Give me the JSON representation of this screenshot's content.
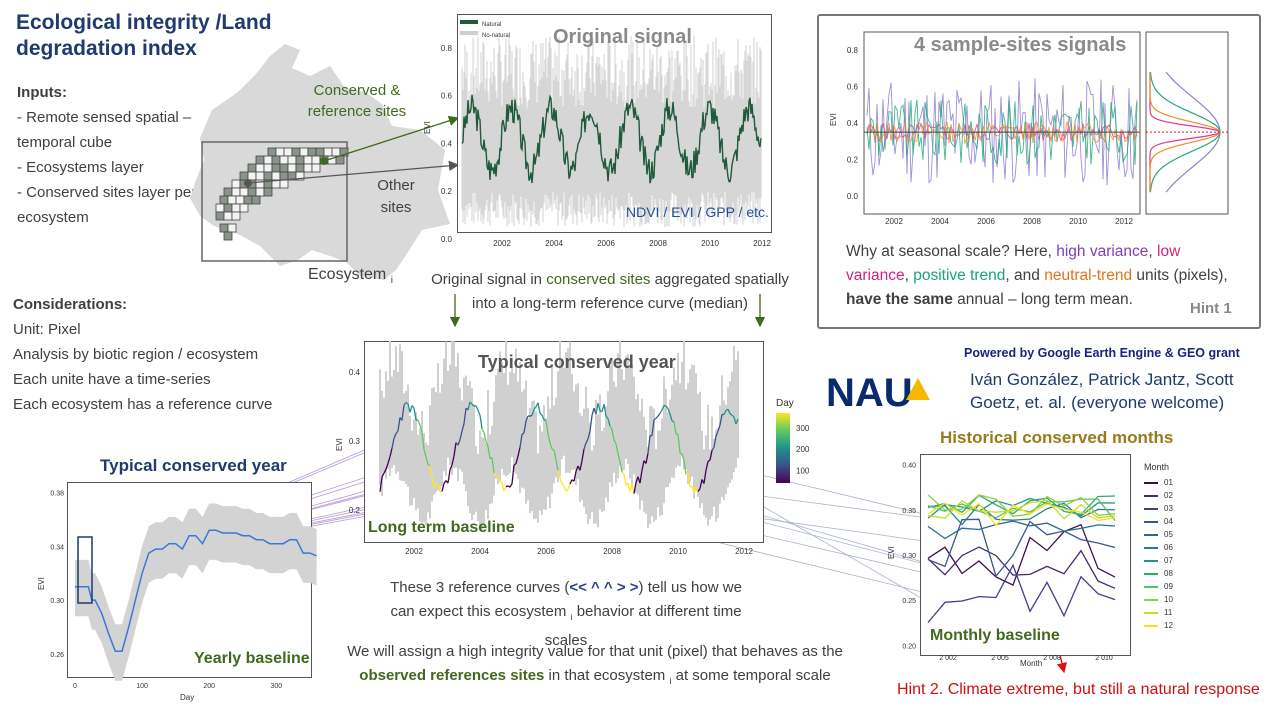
{
  "header": {
    "title": "Ecological integrity /Land degradation index"
  },
  "inputs": {
    "heading": "Inputs:",
    "items": [
      "- Remote sensed spatial – temporal cube",
      "- Ecosystems layer",
      "- Conserved sites layer per ecosystem"
    ]
  },
  "considerations": {
    "heading": "Considerations:",
    "items": [
      "Unit: Pixel",
      "Analysis by biotic region / ecosystem",
      "Each unite have a time-series",
      "Each ecosystem has a reference curve"
    ]
  },
  "map": {
    "conserved_label": "Conserved & reference sites",
    "other_label": "Other sites",
    "ecosystem_label": "Ecosystem",
    "ecosystem_sub": "i"
  },
  "original_signal": {
    "title": "Original signal",
    "legend": [
      "Natural",
      "No-natural"
    ],
    "products": "NDVI / EVI / GPP / etc.",
    "colors": {
      "natural": "#1f5a3a",
      "nonnatural": "#cfcfcf"
    }
  },
  "hint1": {
    "title": "4 sample-sites signals",
    "text_pre": "Why at seasonal scale? Here, ",
    "high_variance": "high variance",
    "sep1": ", ",
    "low_variance": "low variance",
    "sep2": ", ",
    "positive_trend": "positive trend",
    "sep3": ", and ",
    "neutral_trend": "neutral-trend",
    "text_mid": " units (pixels), ",
    "same": "have the same",
    "text_post": " annual – long term mean.",
    "hint_label": "Hint 1"
  },
  "aggregation_caption": {
    "pre": "Original signal in ",
    "highlight": "conserved sites",
    "post": " aggregated spatially into a long-term reference curve (median)"
  },
  "long_term": {
    "title": "Typical conserved year",
    "baseline_label": "Long term baseline",
    "colorbar_title": "Day"
  },
  "credits": {
    "powered": "Powered by Google Earth Engine & GEO grant",
    "logo": "NAU",
    "authors": "Iván González, Patrick Jantz, Scott Goetz, et. al. (everyone welcome)"
  },
  "yearly": {
    "title": "Typical conserved year",
    "baseline_label": "Yearly baseline"
  },
  "monthly": {
    "title": "Historical conserved months",
    "baseline_label": "Monthly baseline",
    "legend_title": "Month",
    "months": [
      "01",
      "02",
      "03",
      "04",
      "05",
      "06",
      "07",
      "08",
      "09",
      "10",
      "11",
      "12"
    ],
    "month_colors": [
      "#3b0f4f",
      "#45286e",
      "#413f86",
      "#3a5590",
      "#2f6a8e",
      "#23808c",
      "#1f9587",
      "#30aa7a",
      "#5bbf63",
      "#8ed045",
      "#c3dd2b",
      "#f3e31d"
    ]
  },
  "reference_caption": {
    "pre": "These 3 reference curves (",
    "arrows": "<< ^ ^ > >",
    "post": ") tell us how we can expect this ecosystem ",
    "sub": "i",
    "end": " behavior at different  time scales"
  },
  "integrity_caption": {
    "pre": "We will assign a high integrity value for that unit (pixel) that behaves as the ",
    "highlight": "observed references sites",
    "post": " in that ecosystem ",
    "sub": "i",
    "end": " at some temporal scale"
  },
  "hint2": {
    "text": "Hint 2. Climate extreme, but still a natural response"
  },
  "chart_data": [
    {
      "type": "line",
      "title": "Original signal",
      "ylabel": "EVI",
      "xticks": [
        "2002",
        "2004",
        "2006",
        "2008",
        "2010",
        "2012"
      ],
      "yticks": [
        "0.0",
        "0.2",
        "0.4",
        "0.6",
        "0.8"
      ],
      "ylim": [
        0.0,
        0.85
      ],
      "series": [
        {
          "name": "Natural"
        },
        {
          "name": "No-natural"
        }
      ]
    },
    {
      "type": "line",
      "title": "4 sample-sites signals",
      "ylabel": "EVI",
      "xticks": [
        "2002",
        "2004",
        "2006",
        "2008",
        "2010",
        "2012"
      ],
      "yticks": [
        "0.0",
        "0.2",
        "0.4",
        "0.6",
        "0.8"
      ],
      "ylim": [
        -0.1,
        0.9
      ],
      "mean_line": 0.35
    },
    {
      "type": "line",
      "title": "Typical conserved year",
      "ylabel": "EVI",
      "xticks": [
        "2002",
        "2004",
        "2006",
        "2008",
        "2010",
        "2012"
      ],
      "yticks": [
        "0.2",
        "0.3",
        "0.4"
      ],
      "colorbar_ticks": [
        "100",
        "200",
        "300"
      ],
      "ylim": [
        0.17,
        0.43
      ]
    },
    {
      "type": "line",
      "title": "Typical conserved year",
      "xlabel": "Day",
      "ylabel": "EVI",
      "xticks": [
        "0",
        "100",
        "200",
        "300"
      ],
      "yticks": [
        "0.26",
        "0.30",
        "0.34",
        "0.38"
      ],
      "ylim": [
        0.245,
        0.385
      ],
      "x": [
        0,
        10,
        20,
        25,
        30,
        40,
        50,
        60,
        70,
        80,
        90,
        100,
        110,
        120,
        130,
        140,
        150,
        160,
        170,
        180,
        190,
        200,
        210,
        220,
        230,
        240,
        250,
        260,
        270,
        280,
        290,
        300,
        310,
        320,
        330,
        340,
        350,
        360
      ],
      "y": [
        0.31,
        0.31,
        0.31,
        0.3,
        0.3,
        0.29,
        0.275,
        0.262,
        0.262,
        0.28,
        0.3,
        0.32,
        0.335,
        0.338,
        0.338,
        0.342,
        0.342,
        0.338,
        0.348,
        0.348,
        0.342,
        0.352,
        0.352,
        0.35,
        0.35,
        0.35,
        0.348,
        0.348,
        0.345,
        0.345,
        0.342,
        0.342,
        0.342,
        0.345,
        0.345,
        0.335,
        0.335,
        0.333
      ]
    },
    {
      "type": "line",
      "title": "Historical conserved months",
      "xlabel": "Month",
      "ylabel": "EVI",
      "xticks": [
        "2 002",
        "2 005",
        "2 008",
        "2 010"
      ],
      "yticks": [
        "0.20",
        "0.25",
        "0.30",
        "0.35",
        "0.40"
      ],
      "ylim": [
        0.195,
        0.405
      ]
    }
  ]
}
